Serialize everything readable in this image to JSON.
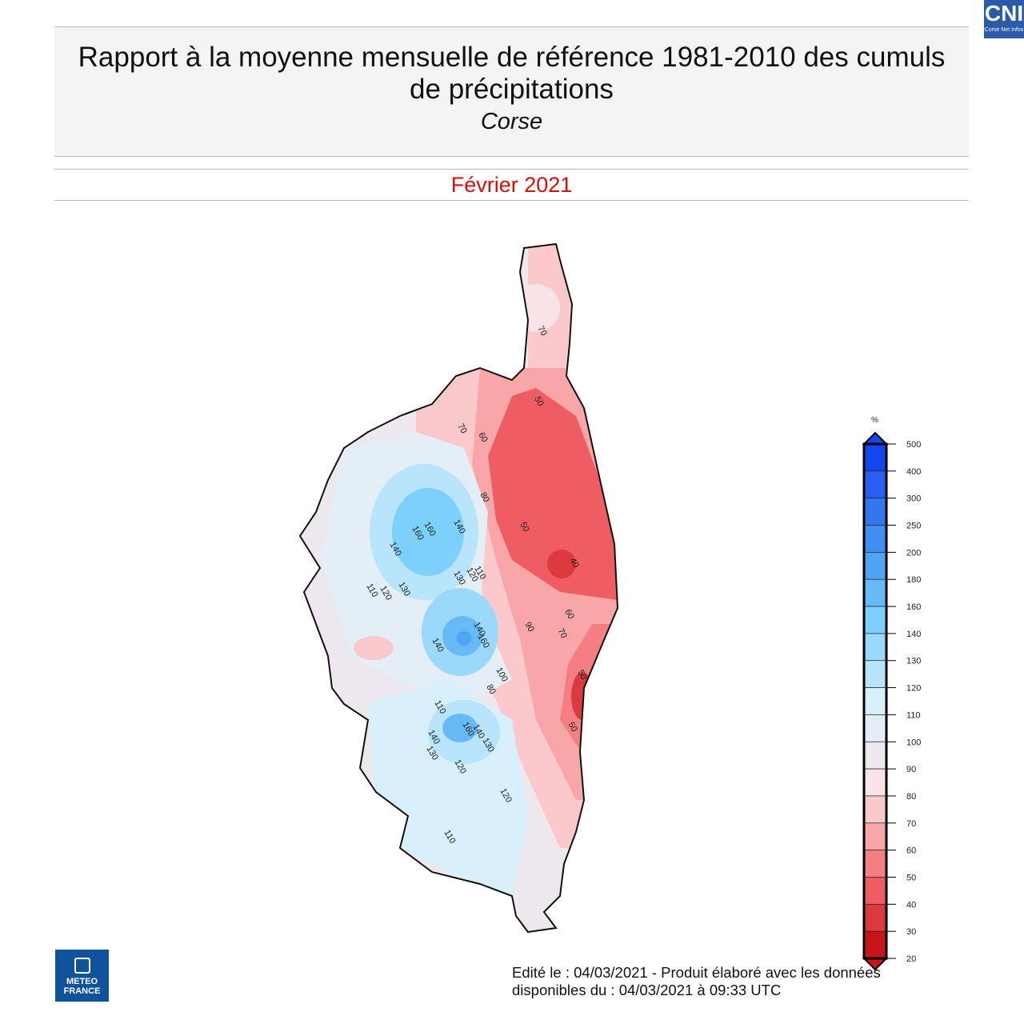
{
  "header": {
    "title": "Rapport à la moyenne mensuelle de référence 1981-2010 des cumuls de précipitations",
    "region": "Corse"
  },
  "period": "Février 2021",
  "logo_top": {
    "name": "CNI",
    "tagline": "Corse Net Infos"
  },
  "logo_bottom": {
    "line1": "METEO",
    "line2": "FRANCE"
  },
  "footer": {
    "line1": "Edité le : 04/03/2021 - Produit élaboré avec les données",
    "line2": "disponibles du : 04/03/2021 à 09:33 UTC"
  },
  "legend": {
    "unit": "%",
    "labels": [
      "500",
      "400",
      "300",
      "250",
      "200",
      "180",
      "160",
      "140",
      "130",
      "120",
      "110",
      "100",
      "90",
      "80",
      "70",
      "60",
      "50",
      "40",
      "30",
      "20"
    ],
    "colors": [
      "#1446f0",
      "#2a5ef0",
      "#3377ee",
      "#3f8ff0",
      "#4fa5f2",
      "#66bbf7",
      "#7dd0fb",
      "#9ad9fa",
      "#b8e5fb",
      "#d6f0fc",
      "#e3eef6",
      "#ece8ee",
      "#fae3e6",
      "#fbc9cc",
      "#f8a6a8",
      "#f47f82",
      "#ee5d62",
      "#dc3a3e",
      "#c81418"
    ]
  },
  "contour_labels": [
    "70",
    "50",
    "70",
    "60",
    "80",
    "50",
    "160",
    "160",
    "140",
    "140",
    "40",
    "130",
    "120",
    "110",
    "110",
    "120",
    "130",
    "60",
    "140",
    "160",
    "90",
    "70",
    "140",
    "100",
    "80",
    "50",
    "110",
    "160",
    "140",
    "130",
    "140",
    "130",
    "120",
    "50",
    "120",
    "110"
  ]
}
